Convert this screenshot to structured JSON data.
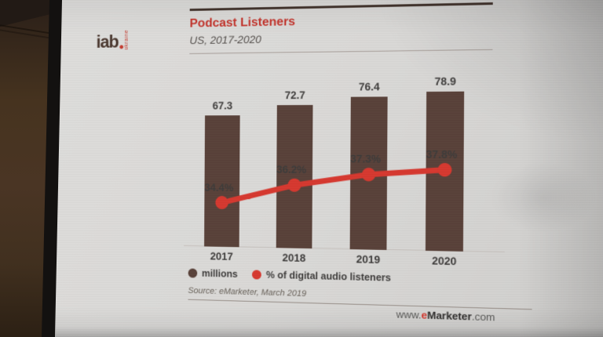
{
  "logo": {
    "text": "iab",
    "vertical_text": "ukraine"
  },
  "chart": {
    "title": "Podcast Listeners",
    "subtitle": "US, 2017-2020",
    "source": "Source: eMarketer, March 2019"
  },
  "chart_data": {
    "type": "combo",
    "title": "Podcast Listeners",
    "subtitle": "US, 2017-2020",
    "categories": [
      "2017",
      "2018",
      "2019",
      "2020"
    ],
    "series": [
      {
        "name": "millions",
        "type": "bar",
        "color": "#594139",
        "values": [
          67.3,
          72.7,
          76.4,
          78.9
        ],
        "labels": [
          "67.3",
          "72.7",
          "76.4",
          "78.9"
        ]
      },
      {
        "name": "% of digital audio listeners",
        "type": "line",
        "color": "#d6382f",
        "values": [
          34.4,
          36.2,
          37.3,
          37.8
        ],
        "labels": [
          "34.4%",
          "36.2%",
          "37.3%",
          "37.8%"
        ]
      }
    ],
    "value_labels": true,
    "grid": false,
    "legend_position": "bottom",
    "source": "Source: eMarketer, March 2019"
  },
  "footer": {
    "url_www": "www.",
    "url_e": "e",
    "url_marketer": "Marketer",
    "url_com": ".com"
  },
  "colors": {
    "title_red": "#c4332b",
    "bar_brown": "#594139",
    "line_red": "#d6382f",
    "text_dark": "#3d3b3a"
  }
}
